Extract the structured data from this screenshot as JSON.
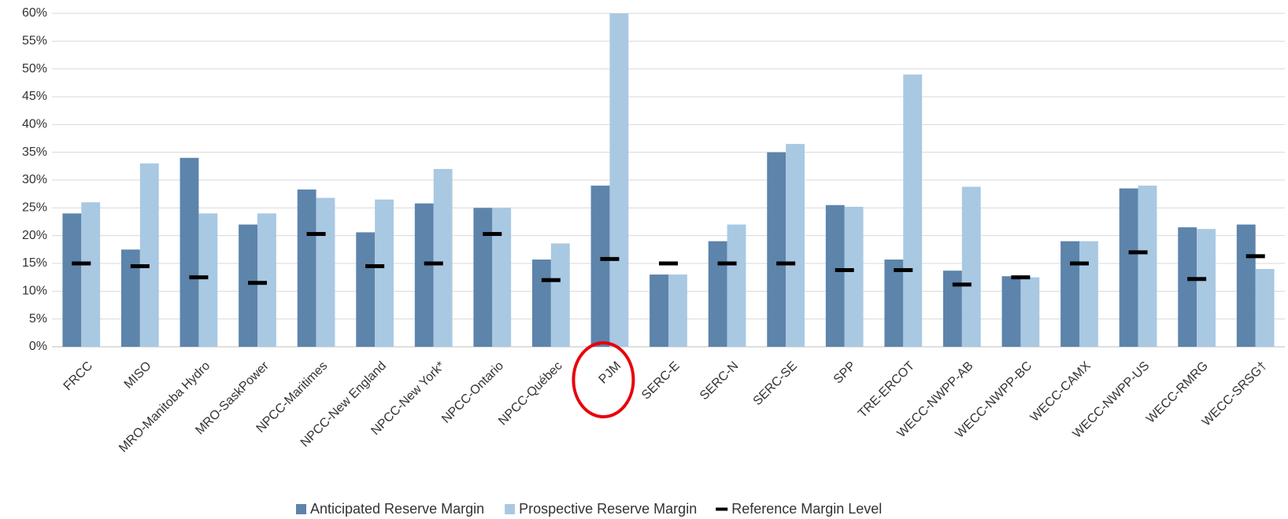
{
  "chart_data": {
    "type": "bar",
    "categories": [
      "FRCC",
      "MISO",
      "MRO-Manitoba Hydro",
      "MRO-SaskPower",
      "NPCC-Maritimes",
      "NPCC-New England",
      "NPCC-New York*",
      "NPCC-Ontario",
      "NPCC-Québec",
      "PJM",
      "SERC-E",
      "SERC-N",
      "SERC-SE",
      "SPP",
      "TRE-ERCOT",
      "WECC-NWPP-AB",
      "WECC-NWPP-BC",
      "WECC-CAMX",
      "WECC-NWPP-US",
      "WECC-RMRG",
      "WECC-SRSG†"
    ],
    "series": [
      {
        "name": "Anticipated Reserve Margin",
        "color": "#5d84ab",
        "kind": "bar",
        "values": [
          24,
          17.5,
          34,
          22,
          28.3,
          20.6,
          25.8,
          25,
          15.7,
          29,
          13,
          19,
          35,
          25.5,
          15.7,
          13.7,
          12.7,
          19,
          28.5,
          21.5,
          22
        ]
      },
      {
        "name": "Prospective Reserve Margin",
        "color": "#a9c8e2",
        "kind": "bar",
        "values": [
          26,
          33,
          24,
          24,
          26.8,
          26.5,
          32,
          25,
          18.6,
          60,
          13,
          22,
          36.5,
          25.2,
          49,
          28.8,
          12.5,
          19,
          29,
          21.2,
          14
        ]
      },
      {
        "name": "Reference Margin Level",
        "color": "#000000",
        "kind": "marker",
        "values": [
          15,
          14.5,
          12.5,
          11.5,
          20.3,
          14.5,
          15,
          20.3,
          12,
          15.8,
          15,
          15,
          15,
          13.8,
          13.8,
          11.2,
          12.5,
          15,
          17,
          12.2,
          16.3
        ]
      }
    ],
    "ylim": [
      0,
      60
    ],
    "yticks": [
      {
        "value": 0,
        "label": "0%"
      },
      {
        "value": 5,
        "label": "5%"
      },
      {
        "value": 10,
        "label": "10%"
      },
      {
        "value": 15,
        "label": "15%"
      },
      {
        "value": 20,
        "label": "20%"
      },
      {
        "value": 25,
        "label": "25%"
      },
      {
        "value": 30,
        "label": "30%"
      },
      {
        "value": 35,
        "label": "35%"
      },
      {
        "value": 40,
        "label": "40%"
      },
      {
        "value": 45,
        "label": "45%"
      },
      {
        "value": 50,
        "label": "50%"
      },
      {
        "value": 55,
        "label": "55%"
      },
      {
        "value": 60,
        "label": "60%"
      }
    ],
    "grid": true,
    "legend": "bottom",
    "highlight": "PJM"
  }
}
